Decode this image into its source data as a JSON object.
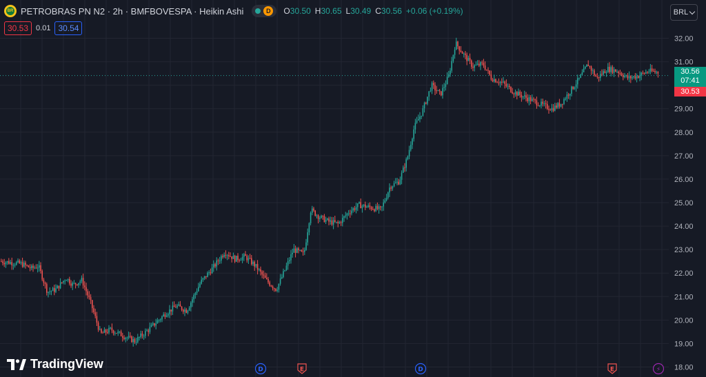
{
  "header": {
    "symbol_title": "PETROBRAS PN N2 · 2h · BMFBOVESPA · Heikin Ashi",
    "logo_text": "BR",
    "delay_badge": "D",
    "ohlc": {
      "open_label": "O",
      "open": "30.50",
      "high_label": "H",
      "high": "30.65",
      "low_label": "L",
      "low": "30.49",
      "close_label": "C",
      "close": "30.56"
    },
    "change": "+0.06 (+0.19%)"
  },
  "trade": {
    "sell": "30.53",
    "spread": "0.01",
    "buy": "30.54"
  },
  "currency": "BRL",
  "price_labels": {
    "last": "30.56",
    "countdown": "07:41",
    "bid": "30.53"
  },
  "brand": "TradingView",
  "colors": {
    "up": "#26a69a",
    "down": "#ef5350",
    "background": "#161a25",
    "grid": "#232632",
    "accent_blue": "#2962ff"
  },
  "chart_data": {
    "type": "candlestick",
    "chart_style": "Heikin Ashi",
    "y_ticks": [
      "32.00",
      "31.00",
      "30.00",
      "29.00",
      "28.00",
      "27.00",
      "26.00",
      "25.00",
      "24.00",
      "23.00",
      "22.00",
      "21.00",
      "20.00",
      "19.00",
      "18.00"
    ],
    "ylim": [
      18,
      32
    ],
    "last_price": 30.56,
    "bid_price": 30.53,
    "trend_points": [
      [
        0,
        22.5
      ],
      [
        30,
        22.4
      ],
      [
        45,
        22.2
      ],
      [
        55,
        22.3
      ],
      [
        68,
        21.2
      ],
      [
        80,
        21.3
      ],
      [
        95,
        21.8
      ],
      [
        105,
        21.5
      ],
      [
        118,
        21.7
      ],
      [
        130,
        20.8
      ],
      [
        145,
        19.4
      ],
      [
        160,
        19.6
      ],
      [
        180,
        19.3
      ],
      [
        195,
        19.1
      ],
      [
        215,
        19.6
      ],
      [
        240,
        20.3
      ],
      [
        255,
        20.6
      ],
      [
        270,
        20.4
      ],
      [
        290,
        21.6
      ],
      [
        310,
        22.3
      ],
      [
        325,
        22.9
      ],
      [
        340,
        22.6
      ],
      [
        355,
        22.7
      ],
      [
        370,
        22.3
      ],
      [
        385,
        21.7
      ],
      [
        400,
        21.3
      ],
      [
        412,
        22.1
      ],
      [
        425,
        23.0
      ],
      [
        440,
        22.8
      ],
      [
        450,
        24.7
      ],
      [
        462,
        24.4
      ],
      [
        475,
        24.2
      ],
      [
        490,
        24.1
      ],
      [
        505,
        24.6
      ],
      [
        520,
        24.9
      ],
      [
        535,
        24.8
      ],
      [
        552,
        24.7
      ],
      [
        565,
        25.7
      ],
      [
        578,
        25.9
      ],
      [
        590,
        26.9
      ],
      [
        600,
        28.2
      ],
      [
        612,
        28.9
      ],
      [
        625,
        30.0
      ],
      [
        638,
        29.6
      ],
      [
        650,
        30.4
      ],
      [
        660,
        31.8
      ],
      [
        672,
        31.3
      ],
      [
        685,
        30.8
      ],
      [
        700,
        30.9
      ],
      [
        712,
        30.3
      ],
      [
        728,
        30.1
      ],
      [
        745,
        29.7
      ],
      [
        760,
        29.5
      ],
      [
        775,
        29.3
      ],
      [
        790,
        29.1
      ],
      [
        800,
        29.0
      ],
      [
        812,
        29.2
      ],
      [
        825,
        29.7
      ],
      [
        840,
        30.3
      ],
      [
        852,
        30.9
      ],
      [
        865,
        30.3
      ],
      [
        880,
        30.7
      ],
      [
        895,
        30.6
      ],
      [
        910,
        30.3
      ],
      [
        925,
        30.4
      ],
      [
        940,
        30.6
      ],
      [
        955,
        30.55
      ]
    ],
    "events": [
      {
        "type": "dividend",
        "label": "D"
      },
      {
        "type": "earnings",
        "label": "E"
      },
      {
        "type": "dividend",
        "label": "D"
      },
      {
        "type": "earnings",
        "label": "E"
      },
      {
        "type": "split",
        "label": "⚡"
      }
    ]
  }
}
